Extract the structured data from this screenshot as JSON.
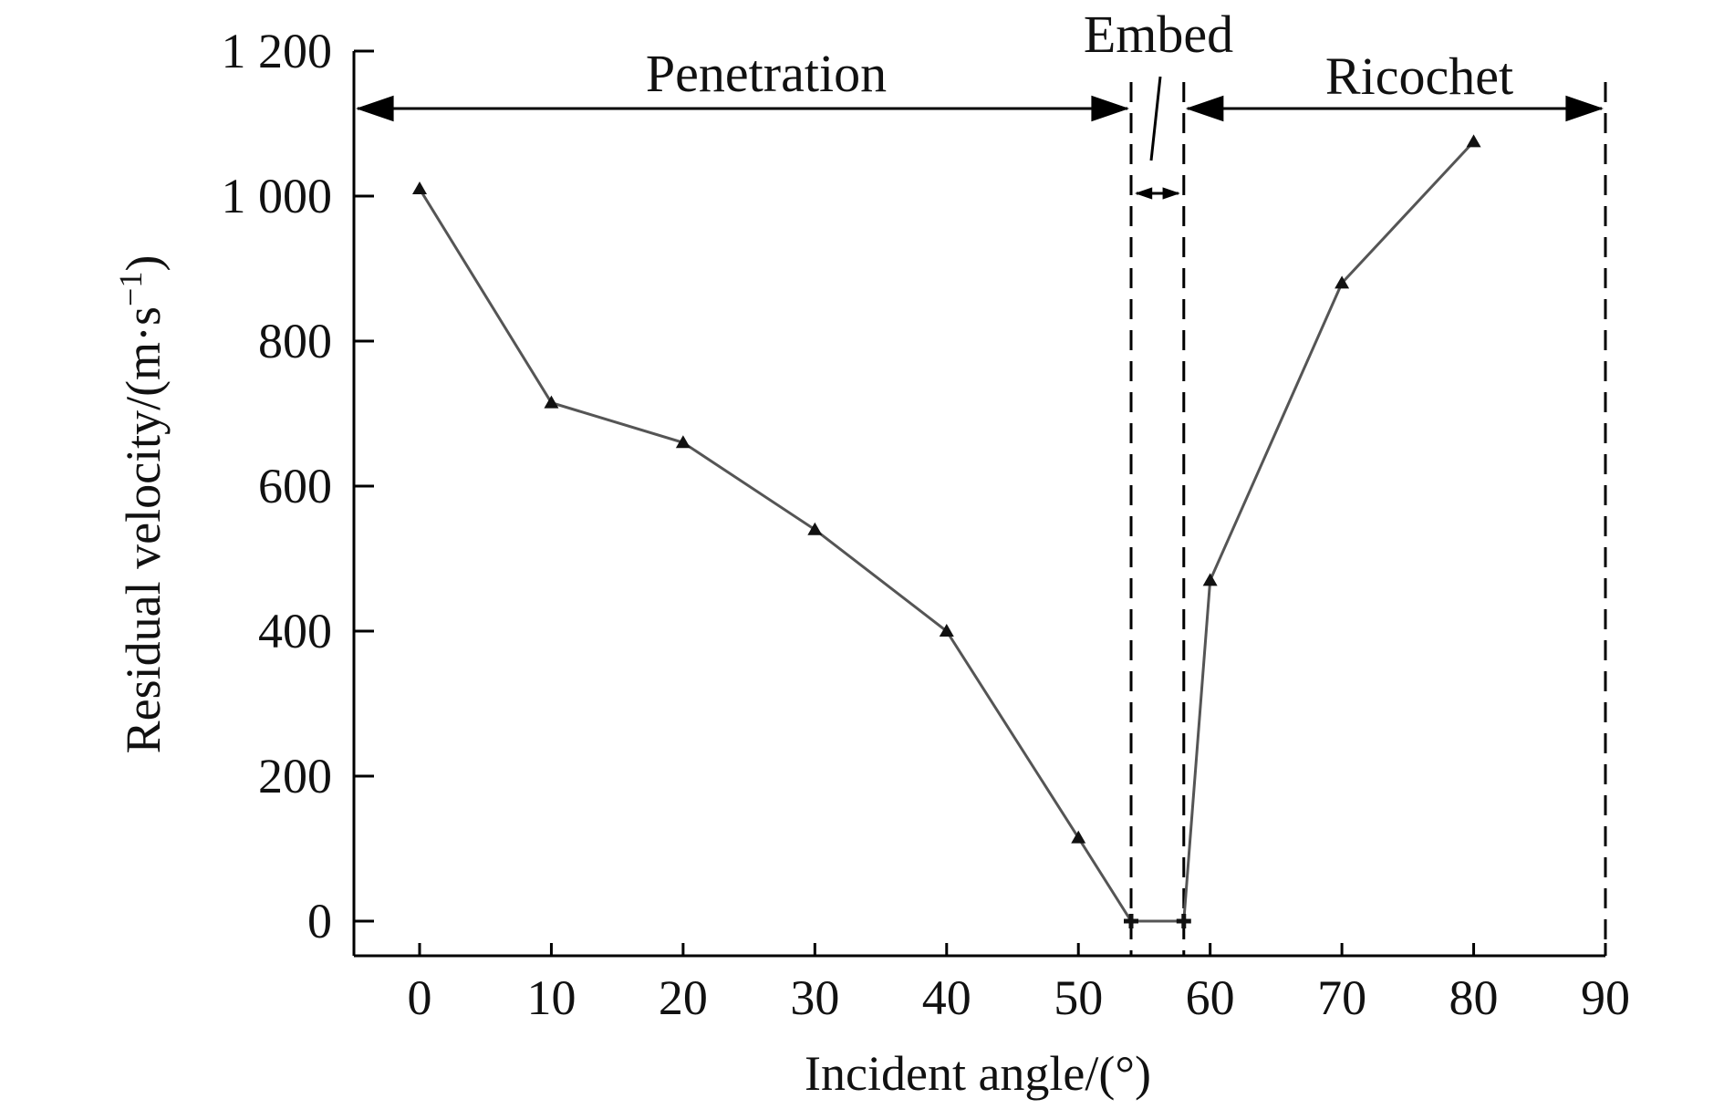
{
  "chart_data": {
    "type": "line",
    "title": "",
    "xlabel": "Incident angle/(°)",
    "ylabel": "Residual velocity/(m·s",
    "ylabel_sup": "−1",
    "ylabel_close": ")",
    "xlim": [
      -5,
      90
    ],
    "ylim": [
      -50,
      1200
    ],
    "x_ticks": [
      0,
      10,
      20,
      30,
      40,
      50,
      60,
      70,
      80,
      90
    ],
    "x_tick_labels": [
      "0",
      "10",
      "20",
      "30",
      "40",
      "50",
      "60",
      "70",
      "80",
      "90"
    ],
    "y_ticks": [
      0,
      200,
      400,
      600,
      800,
      1000,
      1200
    ],
    "y_tick_labels": [
      "0",
      "200",
      "400",
      "600",
      "800",
      "1 000",
      "1 200"
    ],
    "grid": false,
    "series": [
      {
        "x": [
          0,
          10,
          20,
          30,
          40,
          50,
          54,
          58,
          60,
          70,
          80
        ],
        "y": [
          1010,
          715,
          660,
          540,
          400,
          115,
          0,
          0,
          470,
          880,
          1075
        ]
      }
    ],
    "regions": [
      {
        "label": "Penetration",
        "from": -5,
        "to": 54
      },
      {
        "label": "Embed",
        "from": 54,
        "to": 58
      },
      {
        "label": "Ricochet",
        "from": 58,
        "to": 90
      }
    ],
    "boundaries": [
      54,
      58,
      90
    ]
  }
}
